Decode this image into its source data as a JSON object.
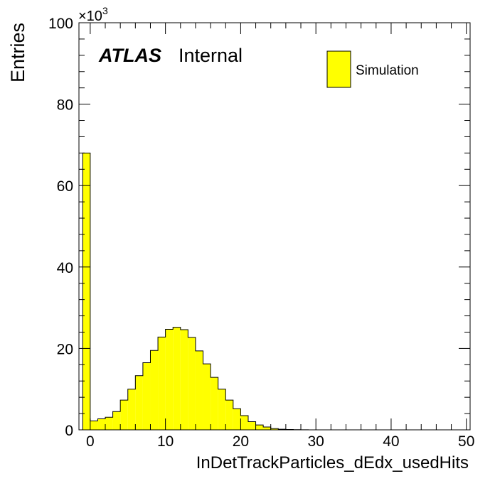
{
  "chart_data": {
    "type": "bar",
    "title": "",
    "xlabel": "InDetTrackParticles_dEdx_usedHits",
    "ylabel": "Entries",
    "y_multiplier_label": "×10",
    "y_multiplier_exponent": "3",
    "xlim": [
      -1.5,
      50.5
    ],
    "ylim": [
      0,
      100000
    ],
    "bin_width": 1,
    "x_ticks": [
      0,
      10,
      20,
      30,
      40,
      50
    ],
    "y_ticks": [
      0,
      20000,
      40000,
      60000,
      80000,
      100000
    ],
    "y_tick_labels": [
      "0",
      "20",
      "40",
      "60",
      "80",
      "100"
    ],
    "x_tick_labels": [
      "0",
      "10",
      "20",
      "30",
      "40",
      "50"
    ],
    "grid": false,
    "legend_position": "top-right",
    "bar_color": "#ffff00",
    "edge_color": "#000000",
    "series": [
      {
        "name": "Simulation",
        "bin_low_edges": [
          -1,
          0,
          1,
          2,
          3,
          4,
          5,
          6,
          7,
          8,
          9,
          10,
          11,
          12,
          13,
          14,
          15,
          16,
          17,
          18,
          19,
          20,
          21,
          22,
          23,
          24,
          25,
          26,
          27,
          28,
          29,
          30
        ],
        "values": [
          68000,
          2200,
          2700,
          3100,
          4500,
          7300,
          10000,
          13300,
          16500,
          19500,
          22800,
          24700,
          25200,
          24600,
          22700,
          19400,
          16200,
          12900,
          10000,
          7300,
          5200,
          3500,
          2000,
          1200,
          700,
          300,
          150,
          80,
          40,
          20,
          10,
          5
        ]
      }
    ]
  },
  "annotations": {
    "atlas": "ATLAS",
    "internal": "Internal"
  }
}
